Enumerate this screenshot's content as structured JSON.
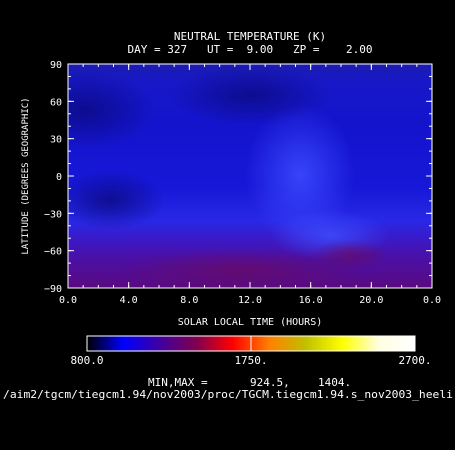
{
  "chart_data": {
    "type": "heatmap",
    "title": "NEUTRAL TEMPERATURE (K)",
    "subtitle": "DAY = 327   UT =  9.00   ZP =    2.00",
    "xlabel": "SOLAR LOCAL TIME (HOURS)",
    "ylabel": "LATITUDE (DEGREES GEOGRAPHIC)",
    "xlim": [
      0,
      24
    ],
    "ylim": [
      -90,
      90
    ],
    "x_tick_labels": [
      "0.0",
      "4.0",
      "8.0",
      "12.0",
      "16.0",
      "20.0",
      "0.0"
    ],
    "y_tick_values": [
      90,
      60,
      30,
      0,
      -30,
      -60,
      -90
    ],
    "y_tick_labels": [
      "90",
      "60",
      "30",
      "0",
      "−30",
      "−60",
      "−90"
    ],
    "colorbar": {
      "min_label": "800.0",
      "mid_label": "1750.",
      "max_label": "2700.",
      "range": [
        800,
        2700
      ],
      "colors": [
        "#000000",
        "#0000ff",
        "#4000a0",
        "#800050",
        "#ff0000",
        "#ff8000",
        "#c0c000",
        "#ffff00",
        "#ffffe0",
        "#ffffff"
      ]
    },
    "min_max_label": "MIN,MAX =",
    "min_value": "924.5,",
    "max_value": "1404.",
    "data_range": [
      924.5,
      1404
    ],
    "description_regions": [
      {
        "lat": [
          60,
          90
        ],
        "lt": [
          0,
          24
        ],
        "temperature_k": 1000
      },
      {
        "lat": [
          -45,
          60
        ],
        "lt": [
          0,
          24
        ],
        "temperature_k": 1150
      },
      {
        "lat": [
          -90,
          -45
        ],
        "lt": [
          0,
          24
        ],
        "temperature_k": 1350
      }
    ]
  },
  "footer_path": "/aim2/tgcm/tiegcm1.94/nov2003/proc/TGCM.tiegcm1.94.s_nov2003_heeli"
}
